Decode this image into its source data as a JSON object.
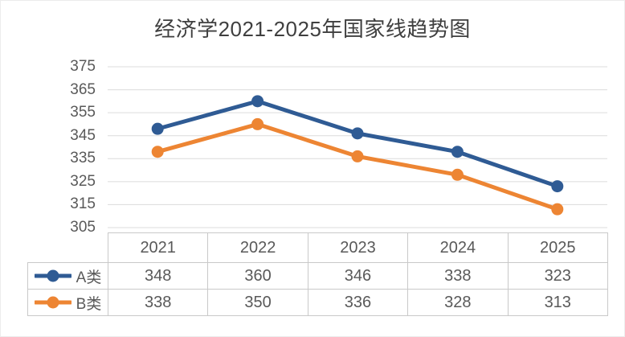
{
  "chart_data": {
    "type": "line",
    "title": "经济学2021-2025年国家线趋势图",
    "categories": [
      "2021",
      "2022",
      "2023",
      "2024",
      "2025"
    ],
    "series": [
      {
        "name": "A类",
        "color": "#2F5B94",
        "values": [
          348,
          360,
          346,
          338,
          323
        ]
      },
      {
        "name": "B类",
        "color": "#ED8533",
        "values": [
          338,
          350,
          336,
          328,
          313
        ]
      }
    ],
    "ylim": [
      305,
      375
    ],
    "yticks": [
      375,
      365,
      355,
      345,
      335,
      325,
      315,
      305
    ],
    "xlabel": "",
    "ylabel": "",
    "grid": "horizontal-only",
    "marker": "circle",
    "legend_position": "data-table-left",
    "data_table_shown": true,
    "colors": {
      "title_text": "#3F3F3F",
      "axis_text": "#595959",
      "gridline": "#DCDCDC",
      "table_border": "#C9C9C9",
      "table_text": "#595959",
      "background": "#FFFFFF"
    }
  }
}
